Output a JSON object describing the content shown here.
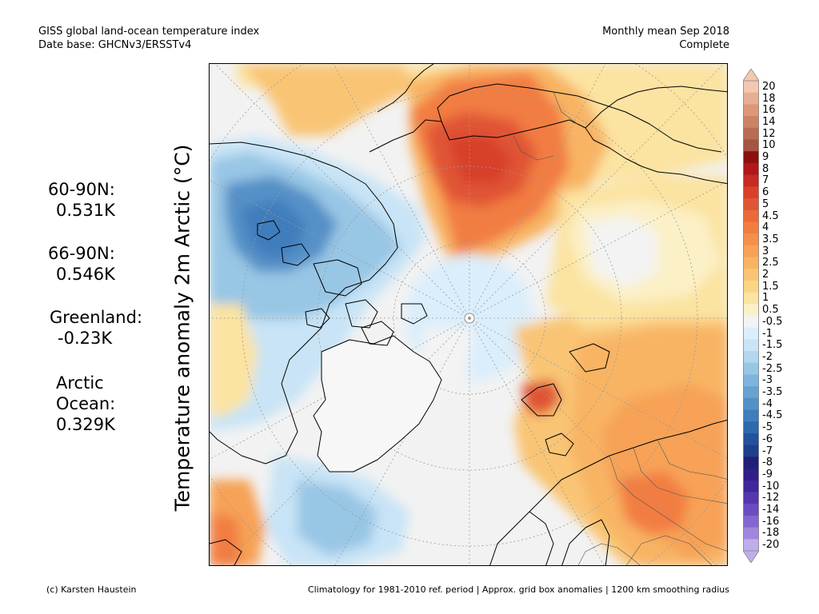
{
  "header": {
    "title_line1": "GISS global land-ocean temperature index",
    "title_line2": "Date base: GHCNv3/ERSSTv4",
    "period_line1": "Monthly mean Sep 2018",
    "period_line2": "Complete"
  },
  "axis_label": "Temperature anomaly 2m Arctic (°C)",
  "stats": [
    {
      "label": "60-90N:",
      "value": "0.531K"
    },
    {
      "label": "66-90N:",
      "value": "0.546K"
    },
    {
      "label": "Greenland:",
      "value": "-0.23K"
    },
    {
      "label": "Arctic\nOcean:",
      "value": "0.329K"
    }
  ],
  "colorbar": {
    "labels": [
      "20",
      "18",
      "16",
      "14",
      "12",
      "10",
      "9",
      "8",
      "7",
      "6",
      "5",
      "4.5",
      "4",
      "3.5",
      "3",
      "2.5",
      "2",
      "1.5",
      "1",
      "0.5",
      "-0.5",
      "-1",
      "-1.5",
      "-2",
      "-2.5",
      "-3",
      "-3.5",
      "-4",
      "-4.5",
      "-5",
      "-6",
      "-7",
      "-8",
      "-9",
      "-10",
      "-12",
      "-14",
      "-16",
      "-18",
      "-20"
    ],
    "colors": [
      "#f4c8b0",
      "#e8ae94",
      "#dc9878",
      "#cc8263",
      "#b86c52",
      "#a65540",
      "#8c1010",
      "#b01818",
      "#c62a22",
      "#d8402c",
      "#e05535",
      "#ec6a3a",
      "#f27d42",
      "#f58f4c",
      "#f7a257",
      "#f8b464",
      "#f9c574",
      "#fad586",
      "#fbe3a1",
      "#fcf0c6",
      "#f3f3f3",
      "#dbeefb",
      "#c8e4f6",
      "#b2d6ee",
      "#98c6e5",
      "#7fb5dc",
      "#68a2d1",
      "#5490c7",
      "#3f7dbc",
      "#2f68ad",
      "#23529c",
      "#1e3f8a",
      "#221f79",
      "#2f1f86",
      "#41279a",
      "#5637b0",
      "#6b4dc2",
      "#8466d1",
      "#a086de",
      "#c1aceb"
    ],
    "top_arrow_color": "#f4c8b0",
    "bottom_arrow_color": "#c1aceb"
  },
  "footer": {
    "left": "(c) Karsten Haustein",
    "right": "Climatology for 1981-2010 ref. period | Approx. grid box anomalies | 1200 km smoothing radius"
  }
}
